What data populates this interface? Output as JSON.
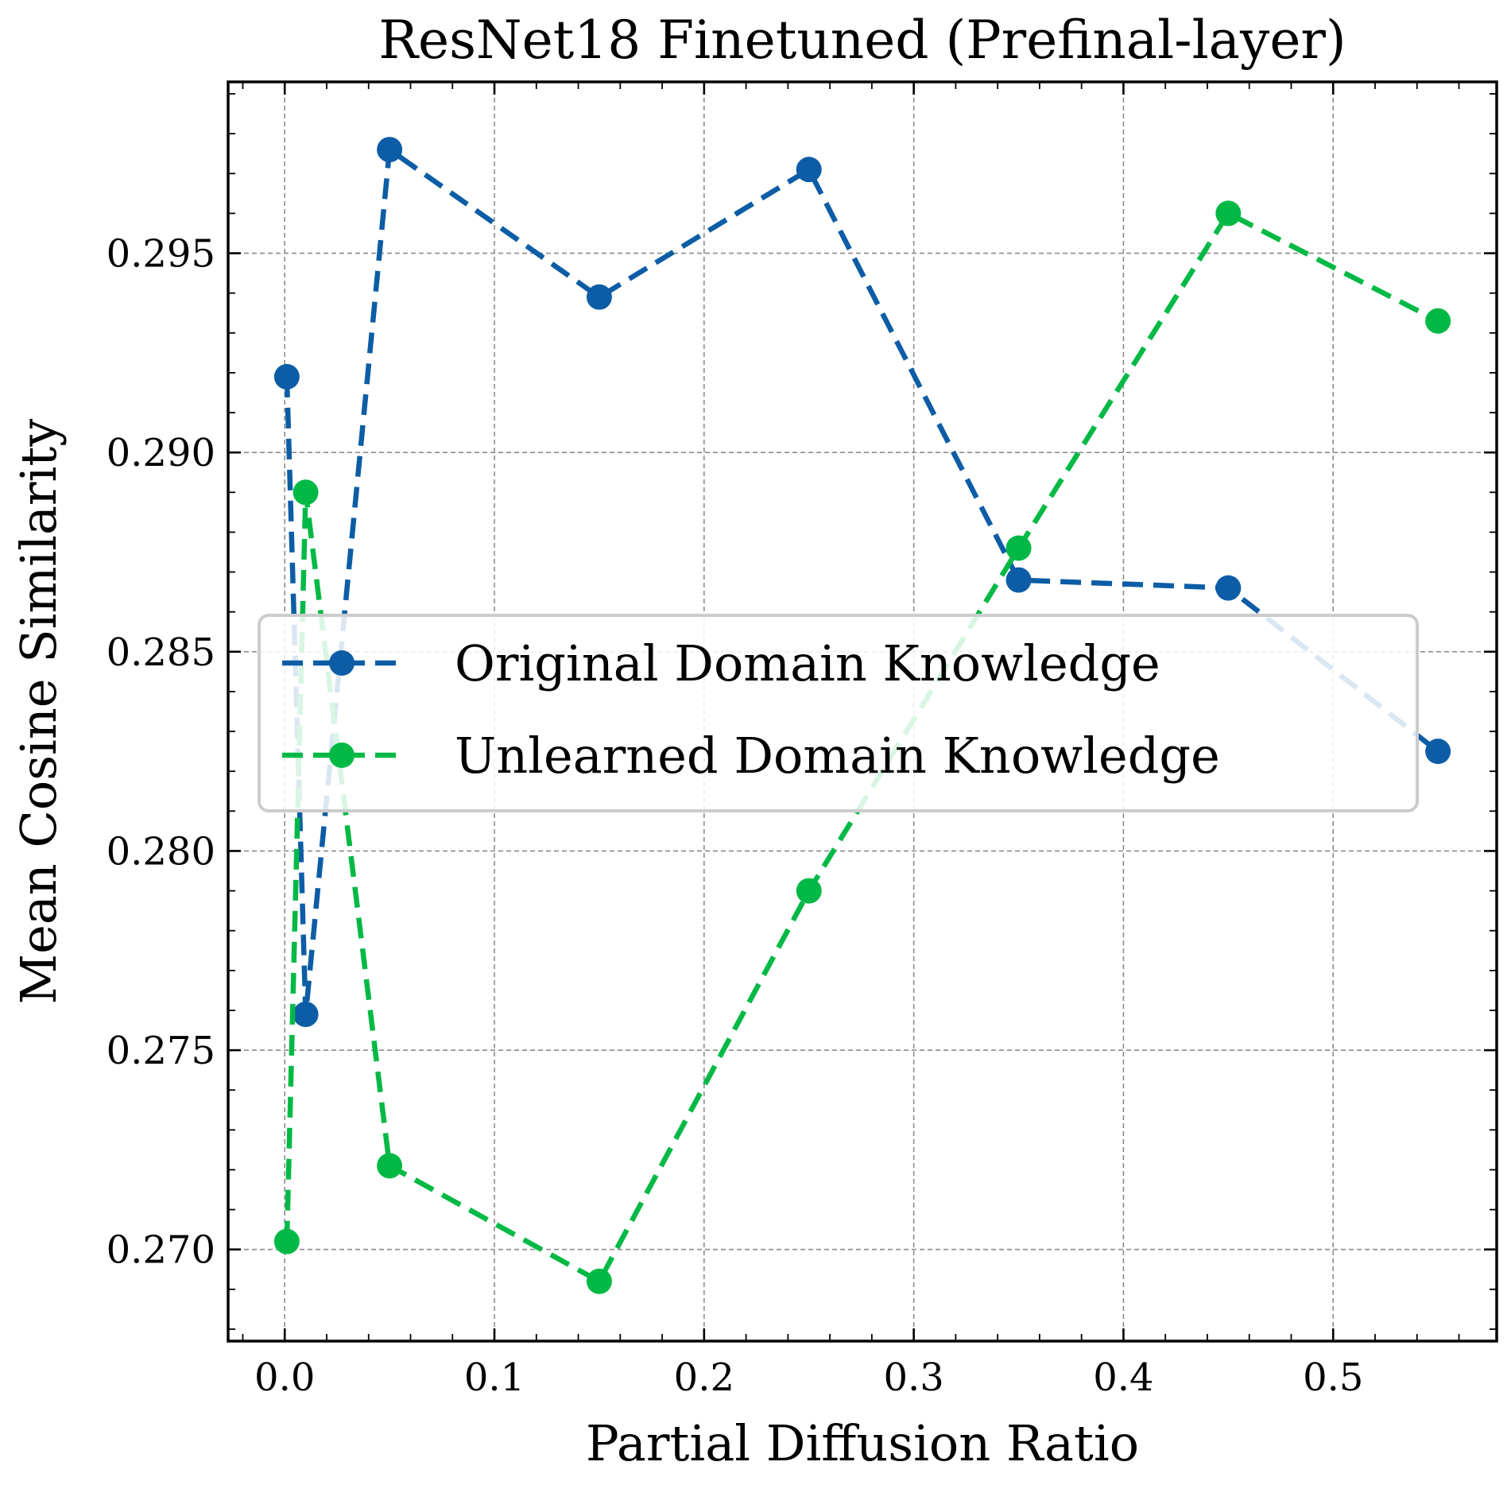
{
  "chart_data": {
    "type": "line",
    "title": "ResNet18 Finetuned (Prefinal-layer)",
    "xlabel": "Partial Diffusion Ratio",
    "ylabel": "Mean Cosine Similarity",
    "xlim": [
      -0.027,
      0.578
    ],
    "ylim": [
      0.2677,
      0.2993
    ],
    "x_ticks": [
      0.0,
      0.1,
      0.2,
      0.3,
      0.4,
      0.5
    ],
    "x_tick_labels": [
      "0.0",
      "0.1",
      "0.2",
      "0.3",
      "0.4",
      "0.5"
    ],
    "y_ticks": [
      0.27,
      0.275,
      0.28,
      0.285,
      0.29,
      0.295
    ],
    "y_tick_labels": [
      "0.270",
      "0.275",
      "0.280",
      "0.285",
      "0.290",
      "0.295"
    ],
    "grid": true,
    "legend_position": "center-right",
    "x": [
      0.001,
      0.01,
      0.05,
      0.15,
      0.25,
      0.35,
      0.45,
      0.55
    ],
    "series": [
      {
        "name": "Original Domain Knowledge",
        "color": "#0C5DA5",
        "values": [
          0.2919,
          0.2759,
          0.2976,
          0.2939,
          0.2971,
          0.2868,
          0.2866,
          0.2825
        ]
      },
      {
        "name": "Unlearned Domain Knowledge",
        "color": "#00B945",
        "values": [
          0.2702,
          0.289,
          0.2721,
          0.2692,
          0.279,
          0.2876,
          0.296,
          0.2933
        ]
      }
    ]
  }
}
